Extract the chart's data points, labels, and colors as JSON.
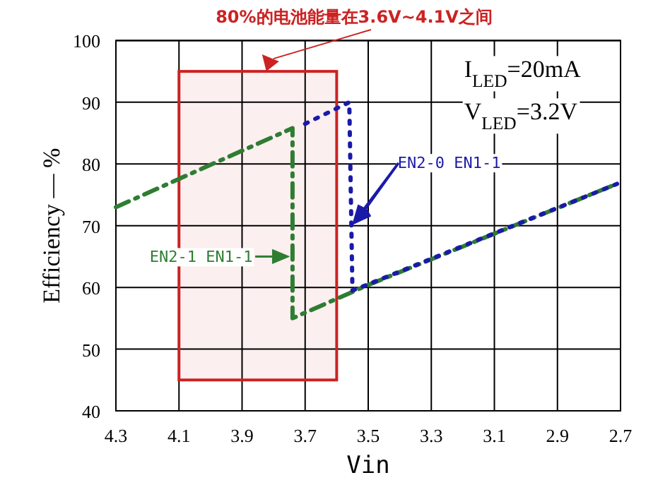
{
  "chart_data": {
    "type": "line",
    "xlabel": "Vin",
    "ylabel": "Efficiency — %",
    "xlim": [
      4.3,
      2.7
    ],
    "xticks": [
      4.3,
      4.1,
      3.9,
      3.7,
      3.5,
      3.3,
      3.1,
      2.9,
      2.7
    ],
    "ylim": [
      40,
      100
    ],
    "yticks": [
      40,
      50,
      60,
      70,
      80,
      90,
      100
    ],
    "grid": true,
    "series": [
      {
        "color": "#2e7d32",
        "line_style": "dashed",
        "x": [
          4.3,
          3.74,
          3.74,
          3.5,
          2.71
        ],
        "values": [
          73,
          85.8,
          55,
          60.4,
          76.8
        ]
      },
      {
        "color": "#1a1aa8",
        "line_style": "dotted",
        "x": [
          3.7,
          3.56,
          3.55,
          3.5,
          2.71
        ],
        "values": [
          86.5,
          90,
          59.5,
          60.5,
          76.8
        ]
      }
    ],
    "bands": [
      {
        "axis": "x",
        "from": 4.1,
        "to": 3.6,
        "color": "#cc2222",
        "label": "80%的电池能量在3.6V~4.1V之间"
      }
    ],
    "annotations": [
      "I$_{LED}$=20mA",
      "V$_{LED}$=3.2V",
      {
        "text": "EN2-1 EN1-1",
        "x": 3.75,
        "y": 65
      },
      "EN2-0 EN1-1"
    ]
  }
}
